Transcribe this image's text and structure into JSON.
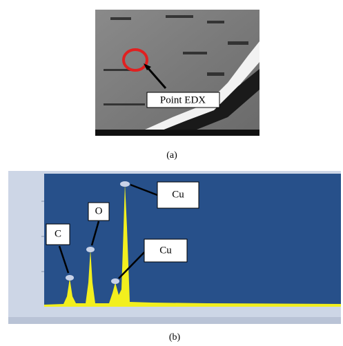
{
  "figure": {
    "panel_a": {
      "annotation": "Point EDX",
      "caption": "(a)"
    },
    "panel_b": {
      "labels": [
        "C",
        "O",
        "Cu",
        "Cu"
      ],
      "caption": "(b)"
    }
  }
}
